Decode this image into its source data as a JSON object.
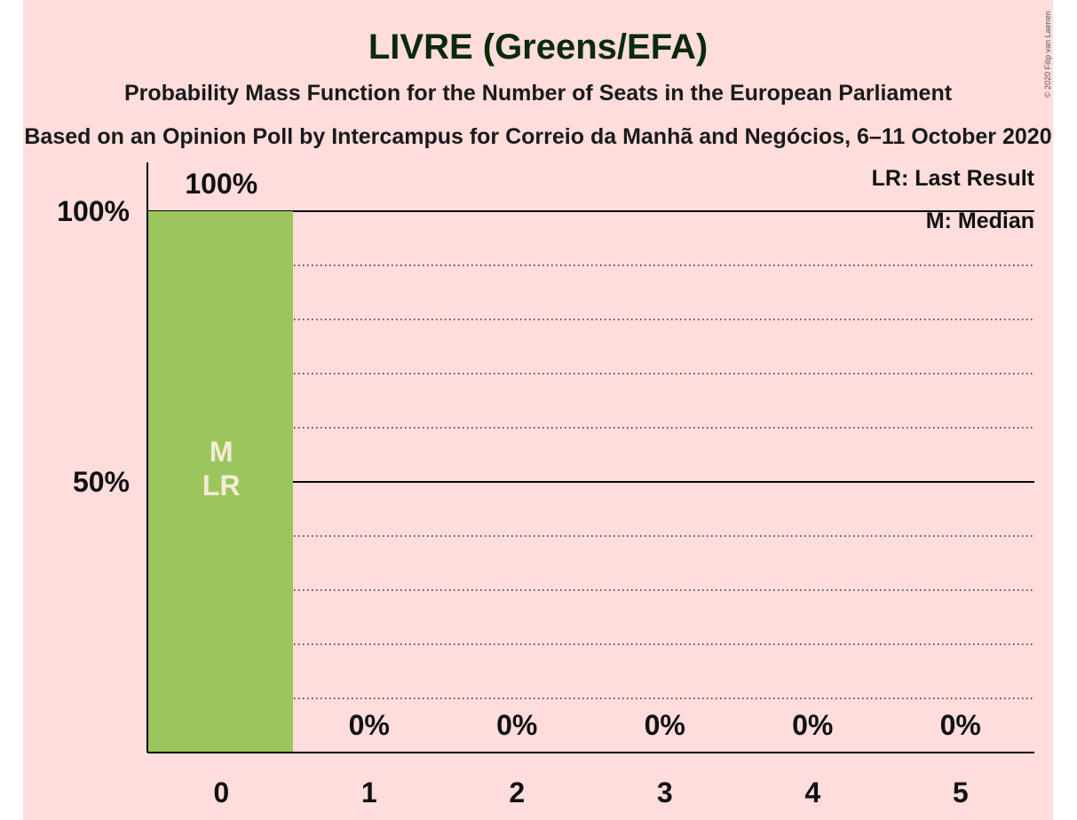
{
  "chart_data": {
    "type": "bar",
    "title": "LIVRE (Greens/EFA)",
    "subtitle": "Probability Mass Function for the Number of Seats in the European Parliament",
    "subtitle2": "Based on an Opinion Poll by Intercampus for Correio da Manhã and Negócios, 6–11 October 2020",
    "categories": [
      "0",
      "1",
      "2",
      "3",
      "4",
      "5"
    ],
    "values": [
      100,
      0,
      0,
      0,
      0,
      0
    ],
    "value_labels": [
      "100%",
      "0%",
      "0%",
      "0%",
      "0%",
      "0%"
    ],
    "y_ticks": [
      {
        "value": 100,
        "label": "100%"
      },
      {
        "value": 50,
        "label": "50%"
      }
    ],
    "ylim": [
      0,
      100
    ],
    "minor_grid_step": 10,
    "bar_color": "#9dc55d",
    "bar_markers": {
      "category": "0",
      "labels": [
        "M",
        "LR"
      ]
    },
    "legend": [
      "LR: Last Result",
      "M: Median"
    ],
    "legend_position": "top-right",
    "copyright": "© 2020 Filip van Laenen"
  }
}
